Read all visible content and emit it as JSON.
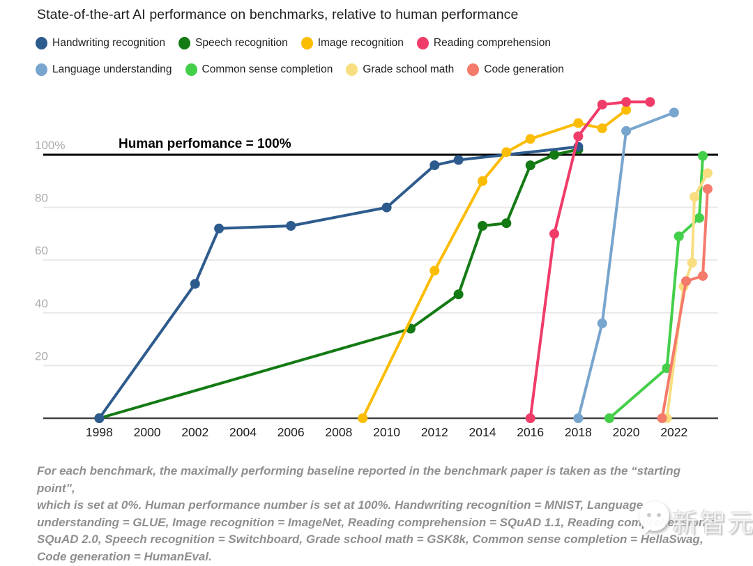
{
  "footnote_lines": [
    "For each benchmark, the maximally performing baseline reported in the benchmark paper is taken as the “starting point”,",
    "which is set at 0%. Human performance number is set at 100%. Handwriting recognition = MNIST, Language",
    "understanding = GLUE, Image recognition = ImageNet, Reading comprehension = SQuAD 1.1, Reading comprehension =",
    "SQuAD 2.0, Speech recognition = Switchboard, Grade school math = GSK8k, Common sense completion = HellaSwag,",
    "Code generation = HumanEval."
  ],
  "watermark": {
    "text": "新智元",
    "icon": "chat-bubble-face-icon"
  },
  "chart_data": {
    "type": "line",
    "title": "State-of-the-art AI performance on benchmarks, relative to human performance",
    "annotation": "Human perfomance = 100%",
    "xlabel": "",
    "ylabel": "",
    "xlim": [
      1995.66,
      2023.84
    ],
    "ylim": [
      0,
      123
    ],
    "grid": true,
    "legend_position": "top",
    "human_performance_value": 100,
    "gridline_values": [
      20,
      40,
      60,
      80
    ],
    "x_ticks": [
      {
        "value": 1998,
        "label": "1998"
      },
      {
        "value": 2000,
        "label": "2000"
      },
      {
        "value": 2002,
        "label": "2002"
      },
      {
        "value": 2004,
        "label": "2004"
      },
      {
        "value": 2006,
        "label": "2006"
      },
      {
        "value": 2008,
        "label": "2008"
      },
      {
        "value": 2010,
        "label": "2010"
      },
      {
        "value": 2012,
        "label": "2012"
      },
      {
        "value": 2014,
        "label": "2014"
      },
      {
        "value": 2016,
        "label": "2016"
      },
      {
        "value": 2018,
        "label": "2018"
      },
      {
        "value": 2020,
        "label": "2020"
      },
      {
        "value": 2022,
        "label": "2022"
      }
    ],
    "y_ticks": [
      {
        "value": 100,
        "label": "100%"
      },
      {
        "value": 80,
        "label": "80"
      },
      {
        "value": 60,
        "label": "60"
      },
      {
        "value": 40,
        "label": "40"
      },
      {
        "value": 20,
        "label": "20"
      }
    ],
    "series": [
      {
        "name": "Handwriting recognition",
        "color": "#2e5b8d",
        "legend_row": 0,
        "points": [
          [
            1998,
            0
          ],
          [
            2002,
            51
          ],
          [
            2003,
            72
          ],
          [
            2006,
            73
          ],
          [
            2010,
            80
          ],
          [
            2012,
            96
          ],
          [
            2013,
            98
          ],
          [
            2018,
            103
          ]
        ]
      },
      {
        "name": "Speech recognition",
        "color": "#147a14",
        "legend_row": 0,
        "points": [
          [
            1998,
            0
          ],
          [
            2011,
            34
          ],
          [
            2013,
            47
          ],
          [
            2014,
            73
          ],
          [
            2015,
            74
          ],
          [
            2016,
            96
          ],
          [
            2017,
            100
          ],
          [
            2018,
            102
          ]
        ]
      },
      {
        "name": "Image recognition",
        "color": "#fbbc04",
        "legend_row": 0,
        "points": [
          [
            2009,
            0
          ],
          [
            2012,
            56
          ],
          [
            2014,
            90
          ],
          [
            2015,
            101
          ],
          [
            2016,
            106
          ],
          [
            2018,
            112
          ],
          [
            2019,
            110
          ],
          [
            2020,
            117
          ]
        ]
      },
      {
        "name": "Reading comprehension",
        "color": "#f03c69",
        "legend_row": 0,
        "points": [
          [
            2016,
            0
          ],
          [
            2017,
            70
          ],
          [
            2018,
            107
          ],
          [
            2019,
            119
          ],
          [
            2020,
            120
          ],
          [
            2021,
            120
          ]
        ]
      },
      {
        "name": "Language understanding",
        "color": "#78a5cd",
        "legend_row": 1,
        "points": [
          [
            2018,
            0
          ],
          [
            2019,
            36
          ],
          [
            2020,
            109
          ],
          [
            2022,
            116
          ]
        ]
      },
      {
        "name": "Common sense completion",
        "color": "#44cf4a",
        "legend_row": 1,
        "points": [
          [
            2019.3,
            0
          ],
          [
            2021.7,
            19
          ],
          [
            2022.2,
            69
          ],
          [
            2023.05,
            76
          ],
          [
            2023.2,
            99.5
          ]
        ]
      },
      {
        "name": "Grade school math",
        "color": "#f8de81",
        "legend_row": 1,
        "points": [
          [
            2021.7,
            0
          ],
          [
            2022.4,
            50
          ],
          [
            2022.75,
            59
          ],
          [
            2022.85,
            84
          ],
          [
            2023.4,
            93
          ]
        ]
      },
      {
        "name": "Code generation",
        "color": "#f47a6b",
        "legend_row": 1,
        "points": [
          [
            2021.5,
            0
          ],
          [
            2022.5,
            52
          ],
          [
            2023.2,
            54
          ],
          [
            2023.4,
            87
          ]
        ]
      }
    ]
  }
}
